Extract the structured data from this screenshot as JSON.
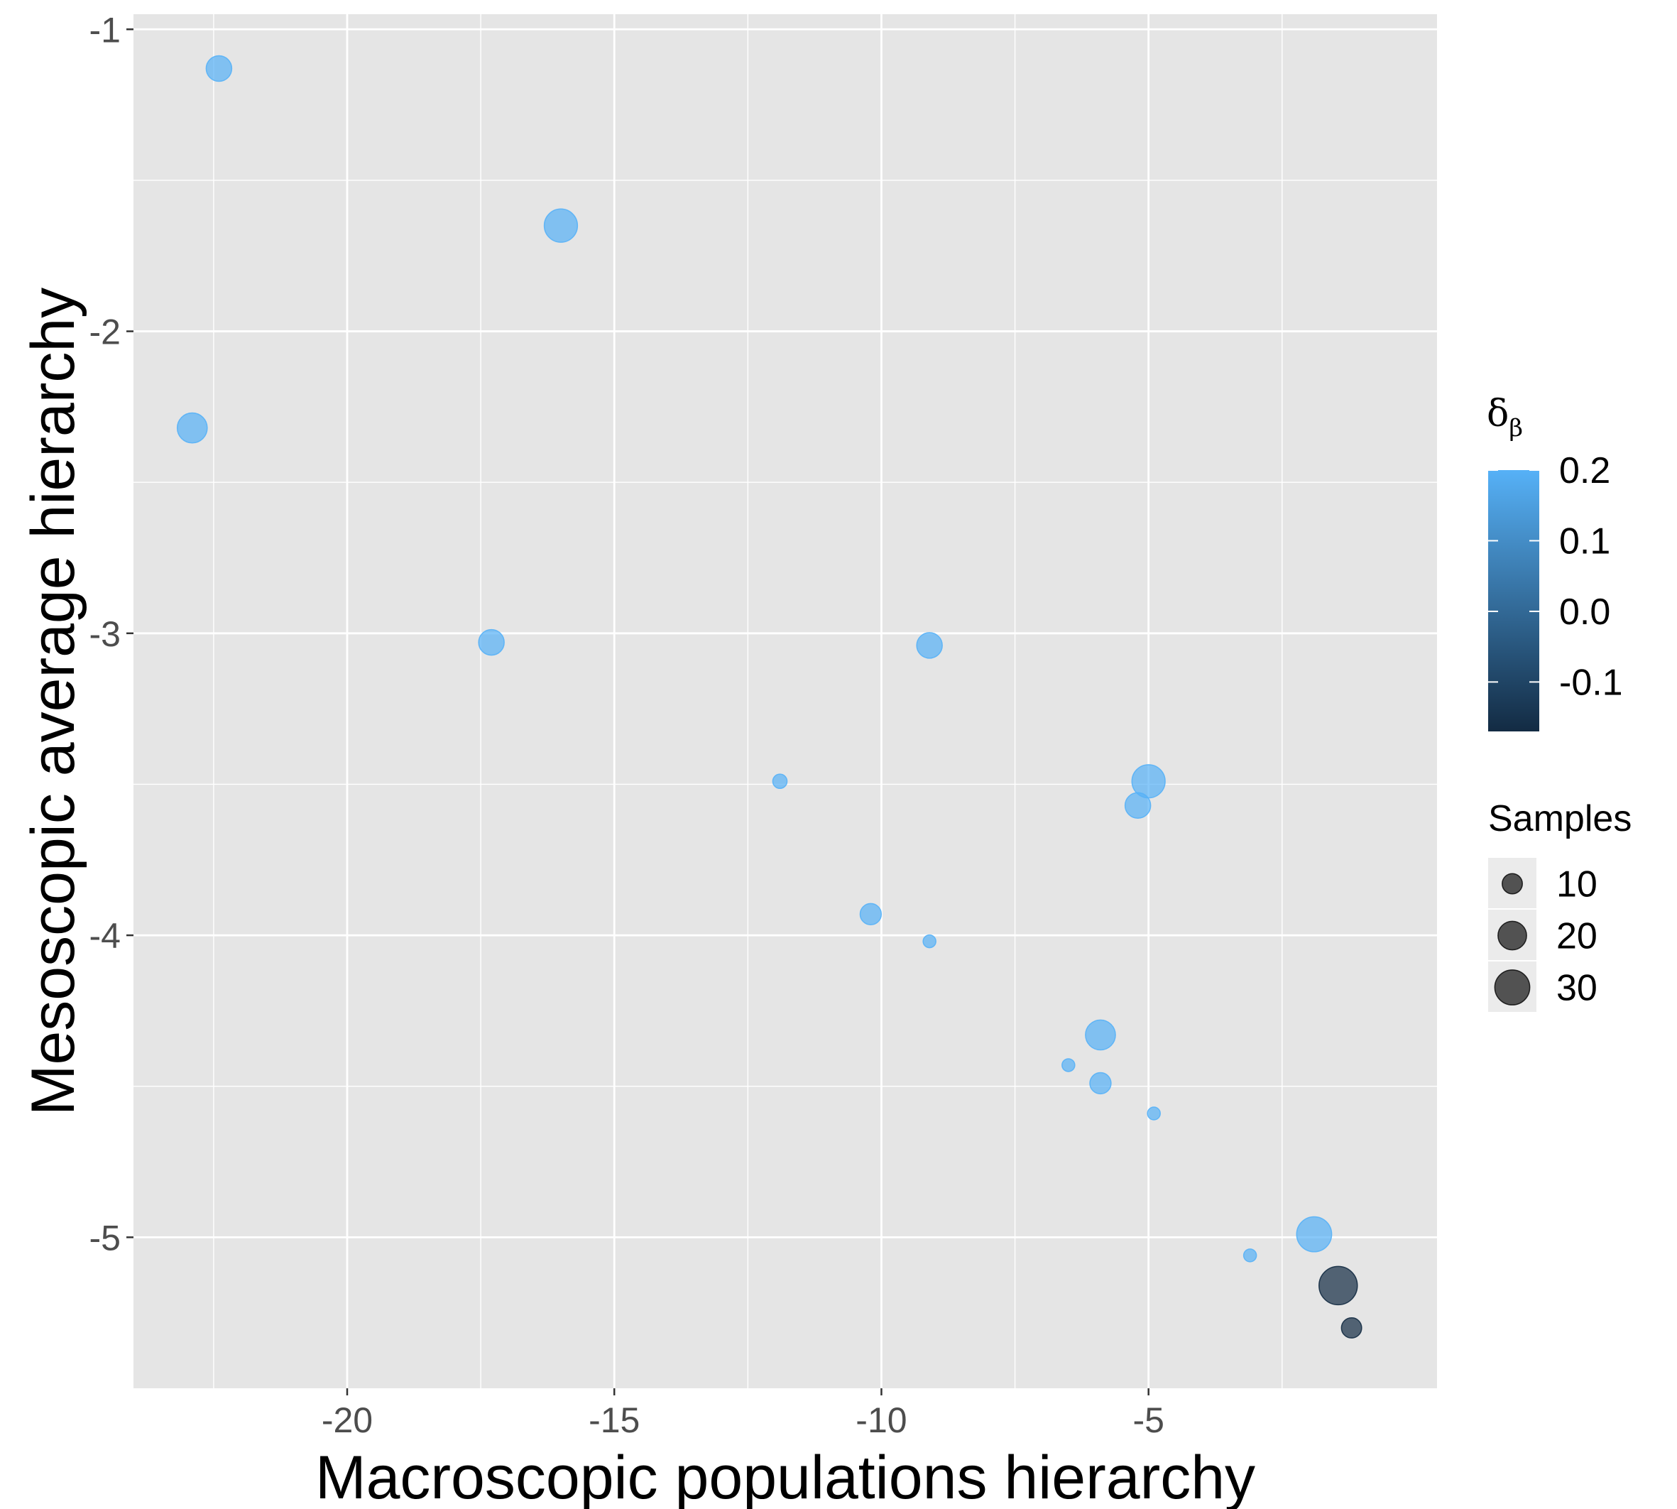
{
  "chart_data": {
    "type": "scatter",
    "xlabel": "Macroscopic populations hierarchy",
    "ylabel": "Mesoscopic average hierarchy",
    "xlim": [
      -24.0,
      0.4
    ],
    "ylim": [
      -5.5,
      -0.95
    ],
    "x_ticks": [
      {
        "value": -20,
        "label": "-20"
      },
      {
        "value": -15,
        "label": "-15"
      },
      {
        "value": -10,
        "label": "-10"
      },
      {
        "value": -5,
        "label": "-5"
      }
    ],
    "y_ticks": [
      {
        "value": -1,
        "label": "-1"
      },
      {
        "value": -2,
        "label": "-2"
      },
      {
        "value": -3,
        "label": "-3"
      },
      {
        "value": -4,
        "label": "-4"
      },
      {
        "value": -5,
        "label": "-5"
      }
    ],
    "grid": true,
    "color_legend": {
      "title": "δ",
      "title_subscript": "β",
      "range": [
        -0.17,
        0.2
      ],
      "low_color": "#132B43",
      "high_color": "#56B1F7",
      "ticks": [
        {
          "value": 0.2,
          "label": "0.2"
        },
        {
          "value": 0.1,
          "label": "0.1"
        },
        {
          "value": 0.0,
          "label": "0.0"
        },
        {
          "value": -0.1,
          "label": "-0.1"
        }
      ]
    },
    "size_legend": {
      "title": "Samples",
      "entries": [
        {
          "value": 10,
          "label": "10"
        },
        {
          "value": 20,
          "label": "20"
        },
        {
          "value": 30,
          "label": "30"
        }
      ]
    },
    "points": [
      {
        "x": -22.4,
        "y": -1.13,
        "size": 16,
        "delta": 0.2
      },
      {
        "x": -16.0,
        "y": -1.65,
        "size": 27,
        "delta": 0.2
      },
      {
        "x": -22.9,
        "y": -2.32,
        "size": 22,
        "delta": 0.2
      },
      {
        "x": -17.3,
        "y": -3.03,
        "size": 16,
        "delta": 0.2
      },
      {
        "x": -9.1,
        "y": -3.04,
        "size": 16,
        "delta": 0.2
      },
      {
        "x": -11.9,
        "y": -3.49,
        "size": 5,
        "delta": 0.2
      },
      {
        "x": -5.0,
        "y": -3.49,
        "size": 27,
        "delta": 0.2
      },
      {
        "x": -5.2,
        "y": -3.57,
        "size": 16,
        "delta": 0.2
      },
      {
        "x": -10.2,
        "y": -3.93,
        "size": 11,
        "delta": 0.2
      },
      {
        "x": -9.1,
        "y": -4.02,
        "size": 4,
        "delta": 0.2
      },
      {
        "x": -5.9,
        "y": -4.33,
        "size": 22,
        "delta": 0.2
      },
      {
        "x": -6.5,
        "y": -4.43,
        "size": 4,
        "delta": 0.2
      },
      {
        "x": -5.9,
        "y": -4.49,
        "size": 11,
        "delta": 0.2
      },
      {
        "x": -4.9,
        "y": -4.59,
        "size": 4,
        "delta": 0.2
      },
      {
        "x": -3.1,
        "y": -5.06,
        "size": 4,
        "delta": 0.2
      },
      {
        "x": -1.9,
        "y": -4.99,
        "size": 30,
        "delta": 0.2
      },
      {
        "x": -1.45,
        "y": -5.16,
        "size": 36,
        "delta": -0.17
      },
      {
        "x": -1.2,
        "y": -5.3,
        "size": 10,
        "delta": -0.17
      }
    ]
  }
}
